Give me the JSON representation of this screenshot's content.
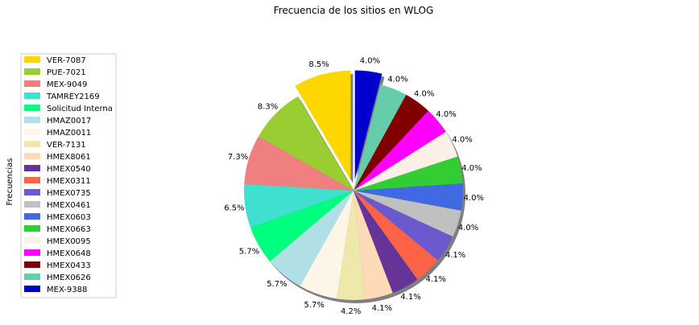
{
  "chart_data": {
    "type": "pie",
    "title": "Frecuencia de los sitios en WLOG",
    "ylabel": "Frecuencias",
    "legend_position": "left",
    "shadow": true,
    "start_angle_deg": 90,
    "direction": "counterclockwise",
    "slices": [
      {
        "label": "VER-7087",
        "percent": 8.5,
        "pct_label": "8.5%",
        "color": "#ffd700",
        "exploded": true
      },
      {
        "label": "PUE-7021",
        "percent": 8.3,
        "pct_label": "8.3%",
        "color": "#9acd32",
        "exploded": false
      },
      {
        "label": "MEX-9049",
        "percent": 7.3,
        "pct_label": "7.3%",
        "color": "#f08080",
        "exploded": false
      },
      {
        "label": "TAMREY2169",
        "percent": 6.5,
        "pct_label": "6.5%",
        "color": "#40e0d0",
        "exploded": false
      },
      {
        "label": "Solicitud Interna",
        "percent": 5.7,
        "pct_label": "5.7%",
        "color": "#00ff7f",
        "exploded": false
      },
      {
        "label": "HMAZ0017",
        "percent": 5.7,
        "pct_label": "5.7%",
        "color": "#b0e0e6",
        "exploded": false
      },
      {
        "label": "HMAZ0011",
        "percent": 5.7,
        "pct_label": "5.7%",
        "color": "#fdf5e6",
        "exploded": false
      },
      {
        "label": "VER-7131",
        "percent": 4.2,
        "pct_label": "4.2%",
        "color": "#eee8aa",
        "exploded": false
      },
      {
        "label": "HMEX8061",
        "percent": 4.1,
        "pct_label": "4.1%",
        "color": "#ffdab9",
        "exploded": false
      },
      {
        "label": "HMEX0540",
        "percent": 4.1,
        "pct_label": "4.1%",
        "color": "#663399",
        "exploded": false
      },
      {
        "label": "HMEX0311",
        "percent": 4.1,
        "pct_label": "4.1%",
        "color": "#ff6347",
        "exploded": false
      },
      {
        "label": "HMEX0735",
        "percent": 4.1,
        "pct_label": "4.1%",
        "color": "#6a5acd",
        "exploded": false
      },
      {
        "label": "HMEX0461",
        "percent": 4.0,
        "pct_label": "4.0%",
        "color": "#c0c0c0",
        "exploded": false
      },
      {
        "label": "HMEX0603",
        "percent": 4.0,
        "pct_label": "4.0%",
        "color": "#4169e1",
        "exploded": false
      },
      {
        "label": "HMEX0663",
        "percent": 4.0,
        "pct_label": "4.0%",
        "color": "#32cd32",
        "exploded": false
      },
      {
        "label": "HMEX0095",
        "percent": 4.0,
        "pct_label": "4.0%",
        "color": "#faf0e6",
        "exploded": false
      },
      {
        "label": "HMEX0648",
        "percent": 4.0,
        "pct_label": "4.0%",
        "color": "#ff00ff",
        "exploded": false
      },
      {
        "label": "HMEX0433",
        "percent": 4.0,
        "pct_label": "4.0%",
        "color": "#800000",
        "exploded": false
      },
      {
        "label": "HMEX0626",
        "percent": 4.0,
        "pct_label": "4.0%",
        "color": "#66cdaa",
        "exploded": false
      },
      {
        "label": "MEX-9388",
        "percent": 4.0,
        "pct_label": "4.0%",
        "color": "#0000cd",
        "exploded": true
      }
    ]
  }
}
